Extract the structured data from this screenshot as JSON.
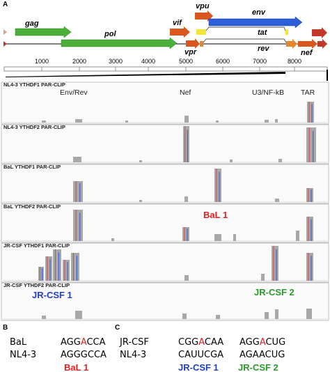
{
  "panel_a": {
    "label": "A",
    "genes": [
      "gag",
      "pol",
      "vif",
      "vpu",
      "env",
      "tat",
      "vpr",
      "rev",
      "nef"
    ],
    "scale_ticks": [
      1000,
      2000,
      3000,
      4000,
      5000,
      6000,
      7000,
      8000
    ],
    "region_labels": [
      "Env/Rev",
      "Nef",
      "U3/NF-kB",
      "TAR"
    ],
    "tracks": [
      "NL4-3 YTHDF1 PAR-CLIP",
      "NL4-3 YTHDF2 PAR-CLIP",
      "BaL YTHDF1 PAR-CLIP",
      "BaL YTHDF2 PAR-CLIP",
      "JR-CSF YTHDF1 PAR-CLIP",
      "JR-CSF YTHDF2 PAR-CLIP"
    ],
    "annotations": [
      "BaL 1",
      "JR-CSF 1",
      "JR-CSF 2"
    ]
  },
  "panel_b": {
    "label": "B",
    "rows": [
      {
        "name": "BaL",
        "sequence": [
          "AGG",
          "A",
          "CCA"
        ]
      },
      {
        "name": "NL4-3",
        "sequence": [
          "AGGGCCA"
        ]
      }
    ],
    "site": "BaL 1"
  },
  "panel_c": {
    "label": "C",
    "rows": [
      {
        "name": "JR-CSF",
        "sequences": [
          [
            "CGG",
            "A",
            "CAA"
          ],
          [
            "AGG",
            "A",
            "CUG"
          ]
        ]
      },
      {
        "name": "NL4-3",
        "sequences": [
          [
            "CAUUCGA"
          ],
          [
            "AGAACUG"
          ]
        ]
      }
    ],
    "sites": [
      "JR-CSF 1",
      "JR-CSF 2"
    ]
  }
}
